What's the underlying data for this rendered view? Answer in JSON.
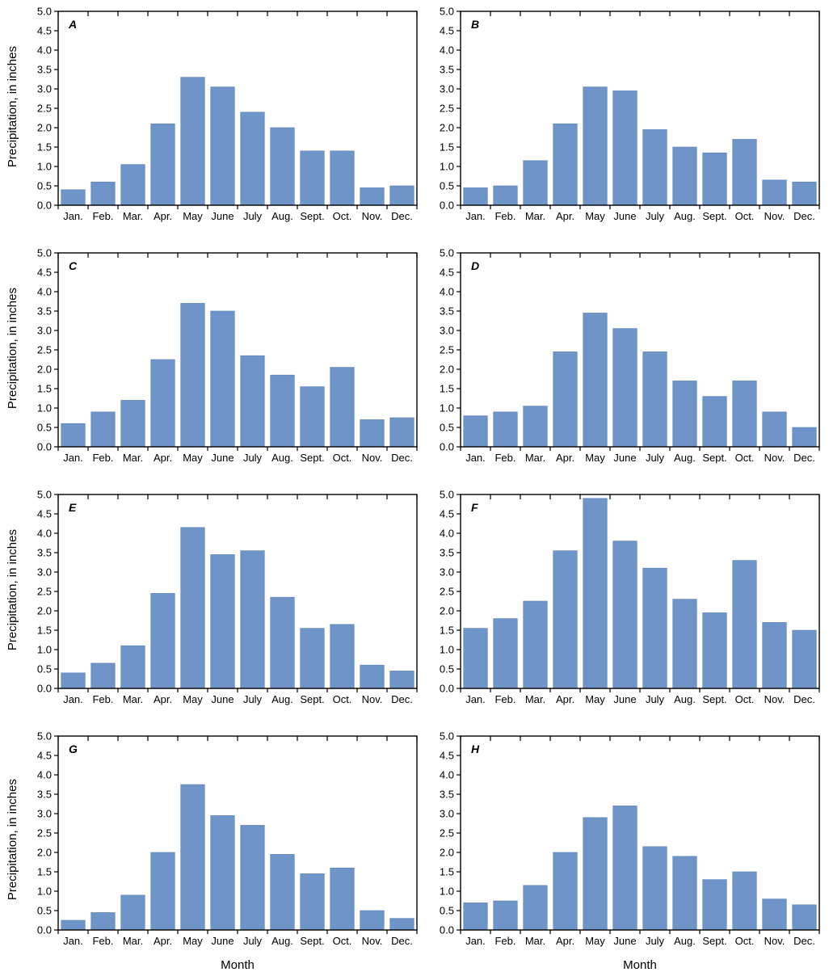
{
  "figure": {
    "ylabel": "Precipitation, in inches",
    "xlabel": "Month",
    "background_color": "#ffffff"
  },
  "chart_data": {
    "type": "bar",
    "layout": "4x2-subplot-grid",
    "xlabel": "Month",
    "ylabel": "Precipitation, in inches",
    "ylim": [
      0,
      5.0
    ],
    "ytick_interval": 0.5,
    "bar_color": "#6e94c8",
    "bar_edge_color": "#5c82b4",
    "axis_color": "#000000",
    "categories": [
      "Jan.",
      "Feb.",
      "Mar.",
      "Apr.",
      "May",
      "June",
      "July",
      "Aug.",
      "Sept.",
      "Oct.",
      "Nov.",
      "Dec."
    ],
    "series": [
      {
        "name": "A",
        "values": [
          0.4,
          0.6,
          1.05,
          2.1,
          3.3,
          3.05,
          2.4,
          2.0,
          1.4,
          1.4,
          0.45,
          0.5
        ]
      },
      {
        "name": "B",
        "values": [
          0.45,
          0.5,
          1.15,
          2.1,
          3.05,
          2.95,
          1.95,
          1.5,
          1.35,
          1.7,
          0.65,
          0.6
        ]
      },
      {
        "name": "C",
        "values": [
          0.6,
          0.9,
          1.2,
          2.25,
          3.7,
          3.5,
          2.35,
          1.85,
          1.55,
          2.05,
          0.7,
          0.75
        ]
      },
      {
        "name": "D",
        "values": [
          0.8,
          0.9,
          1.05,
          2.45,
          3.45,
          3.05,
          2.45,
          1.7,
          1.3,
          1.7,
          0.9,
          0.5
        ]
      },
      {
        "name": "E",
        "values": [
          0.4,
          0.65,
          1.1,
          2.45,
          4.15,
          3.45,
          3.55,
          2.35,
          1.55,
          1.65,
          0.6,
          0.45
        ]
      },
      {
        "name": "F",
        "values": [
          1.55,
          1.8,
          2.25,
          3.55,
          4.9,
          3.8,
          3.1,
          2.3,
          1.95,
          3.3,
          1.7,
          1.5
        ]
      },
      {
        "name": "G",
        "values": [
          0.25,
          0.45,
          0.9,
          2.0,
          3.75,
          2.95,
          2.7,
          1.95,
          1.45,
          1.6,
          0.5,
          0.3
        ]
      },
      {
        "name": "H",
        "values": [
          0.7,
          0.75,
          1.15,
          2.0,
          2.9,
          3.2,
          2.15,
          1.9,
          1.3,
          1.5,
          0.8,
          0.65
        ]
      }
    ]
  }
}
